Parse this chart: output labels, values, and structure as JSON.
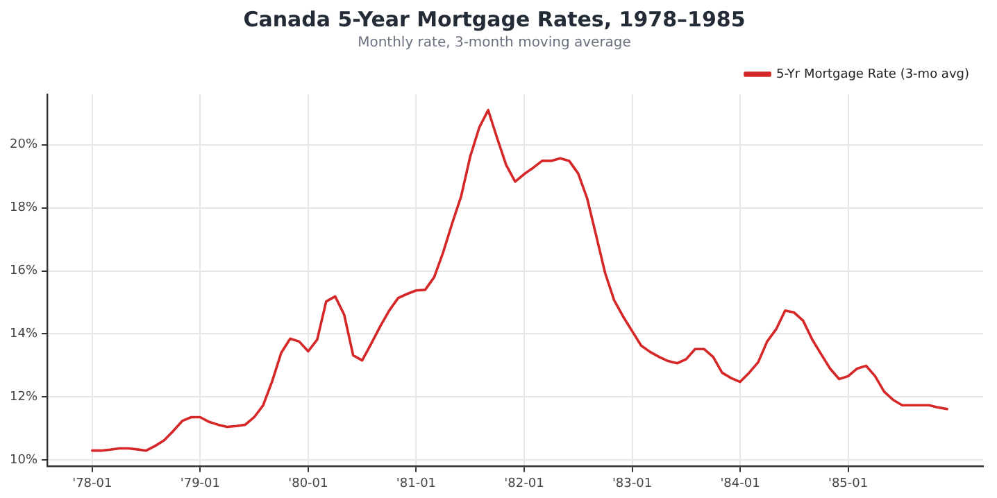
{
  "chart_data": {
    "type": "line",
    "title": "Canada 5-Year Mortgage Rates, 1978–1985",
    "subtitle": "Monthly rate, 3-month moving average",
    "x": [
      "1978-01",
      "1978-02",
      "1978-03",
      "1978-04",
      "1978-05",
      "1978-06",
      "1978-07",
      "1978-08",
      "1978-09",
      "1978-10",
      "1978-11",
      "1978-12",
      "1979-01",
      "1979-02",
      "1979-03",
      "1979-04",
      "1979-05",
      "1979-06",
      "1979-07",
      "1979-08",
      "1979-09",
      "1979-10",
      "1979-11",
      "1979-12",
      "1980-01",
      "1980-02",
      "1980-03",
      "1980-04",
      "1980-05",
      "1980-06",
      "1980-07",
      "1980-08",
      "1980-09",
      "1980-10",
      "1980-11",
      "1980-12",
      "1981-01",
      "1981-02",
      "1981-03",
      "1981-04",
      "1981-05",
      "1981-06",
      "1981-07",
      "1981-08",
      "1981-09",
      "1981-10",
      "1981-11",
      "1981-12",
      "1982-01",
      "1982-02",
      "1982-03",
      "1982-04",
      "1982-05",
      "1982-06",
      "1982-07",
      "1982-08",
      "1982-09",
      "1982-10",
      "1982-11",
      "1982-12",
      "1983-01",
      "1983-02",
      "1983-03",
      "1983-04",
      "1983-05",
      "1983-06",
      "1983-07",
      "1983-08",
      "1983-09",
      "1983-10",
      "1983-11",
      "1983-12",
      "1984-01",
      "1984-02",
      "1984-03",
      "1984-04",
      "1984-05",
      "1984-06",
      "1984-07",
      "1984-08",
      "1984-09",
      "1984-10",
      "1984-11",
      "1984-12",
      "1985-01",
      "1985-02",
      "1985-03",
      "1985-04",
      "1985-05",
      "1985-06",
      "1985-07",
      "1985-08",
      "1985-09",
      "1985-10",
      "1985-11",
      "1985-12"
    ],
    "series": [
      {
        "name": "5-Yr Mortgage Rate (3-mo avg)",
        "color": "#d62728",
        "values": [
          10.3,
          10.3,
          10.33,
          10.37,
          10.37,
          10.34,
          10.3,
          10.45,
          10.63,
          10.92,
          11.24,
          11.36,
          11.36,
          11.21,
          11.12,
          11.05,
          11.08,
          11.12,
          11.36,
          11.74,
          12.5,
          13.4,
          13.85,
          13.76,
          13.45,
          13.82,
          15.03,
          15.19,
          14.61,
          13.32,
          13.16,
          13.69,
          14.24,
          14.74,
          15.14,
          15.27,
          15.38,
          15.4,
          15.8,
          16.59,
          17.51,
          18.37,
          19.62,
          20.54,
          21.1,
          20.21,
          19.36,
          18.83,
          19.07,
          19.27,
          19.49,
          19.49,
          19.57,
          19.49,
          19.09,
          18.3,
          17.12,
          15.93,
          15.07,
          14.55,
          14.09,
          13.63,
          13.43,
          13.27,
          13.14,
          13.07,
          13.2,
          13.52,
          13.52,
          13.27,
          12.77,
          12.6,
          12.48,
          12.77,
          13.1,
          13.76,
          14.15,
          14.74,
          14.68,
          14.42,
          13.83,
          13.36,
          12.9,
          12.57,
          12.66,
          12.9,
          12.99,
          12.66,
          12.17,
          11.91,
          11.74,
          11.74,
          11.74,
          11.74,
          11.67,
          11.62
        ]
      }
    ],
    "xlim": [
      "1977-08",
      "1986-04"
    ],
    "xticks": [
      {
        "value": "1978-01",
        "label": "'78-01"
      },
      {
        "value": "1979-01",
        "label": "'79-01"
      },
      {
        "value": "1980-01",
        "label": "'80-01"
      },
      {
        "value": "1981-01",
        "label": "'81-01"
      },
      {
        "value": "1982-01",
        "label": "'82-01"
      },
      {
        "value": "1983-01",
        "label": "'83-01"
      },
      {
        "value": "1984-01",
        "label": "'84-01"
      },
      {
        "value": "1985-01",
        "label": "'85-01"
      }
    ],
    "ylim": [
      9.8,
      21.6
    ],
    "yticks": [
      {
        "value": 10,
        "label": "10%"
      },
      {
        "value": 12,
        "label": "12%"
      },
      {
        "value": 14,
        "label": "14%"
      },
      {
        "value": 16,
        "label": "16%"
      },
      {
        "value": 18,
        "label": "18%"
      },
      {
        "value": 20,
        "label": "20%"
      }
    ],
    "grid": true,
    "legend": "top right",
    "marker": "none",
    "line_style": "solid"
  }
}
